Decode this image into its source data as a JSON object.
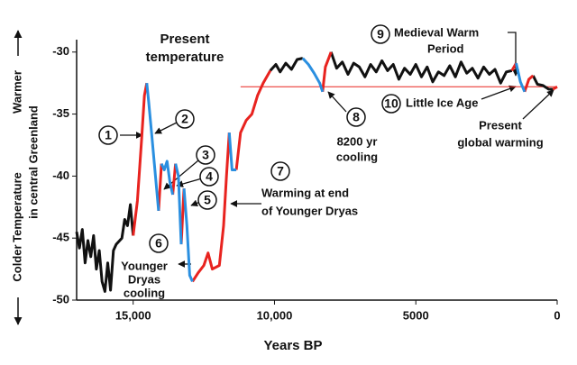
{
  "chart_data": {
    "type": "line",
    "xlabel": "Years BP",
    "ylabel": [
      "Temperature",
      "in central Greenland"
    ],
    "warmer": "Warmer",
    "colder": "Colder",
    "xlim": [
      17000,
      0
    ],
    "ylim": [
      -50,
      -29
    ],
    "xticks": [
      {
        "value": 15000,
        "label": "15,000"
      },
      {
        "value": 10000,
        "label": "10,000"
      },
      5000,
      0
    ],
    "yticks": [
      -30,
      -35,
      -40,
      -45,
      -50
    ],
    "series": [
      {
        "color": "#111111",
        "x": [
          17000,
          16900,
          16800,
          16700,
          16600,
          16500,
          16400,
          16300,
          16200,
          16100,
          16000,
          15900,
          15800,
          15700,
          15600,
          15400,
          15300,
          15200,
          15100,
          15000,
          null,
          10150,
          9950,
          9800,
          9600,
          9400,
          9200,
          9000,
          null,
          8000,
          7800,
          7600,
          7400,
          7200,
          7000,
          6800,
          6600,
          6400,
          6200,
          6000,
          5800,
          5600,
          5400,
          5200,
          5000,
          4800,
          4600,
          4400,
          4200,
          4000,
          3800,
          3600,
          3400,
          3200,
          3000,
          2800,
          2600,
          2400,
          2200,
          2000,
          1800,
          1600,
          null,
          850,
          700,
          500,
          300,
          150
        ],
        "values": [
          -44.5,
          -45.8,
          -44.3,
          -47,
          -45.2,
          -46.5,
          -44.8,
          -47.5,
          -46,
          -48.5,
          -49.3,
          -47,
          -49.2,
          -46,
          -45.5,
          -45,
          -43.5,
          -44,
          -42.3,
          -44.8,
          null,
          -31.5,
          -31,
          -31.6,
          -30.9,
          -31.4,
          -30.6,
          -30.5,
          null,
          -30,
          -31.3,
          -30.8,
          -31.8,
          -30.9,
          -31.2,
          -32,
          -31,
          -31.6,
          -30.7,
          -31.5,
          -31,
          -32.2,
          -31.3,
          -31.8,
          -31,
          -32,
          -31.2,
          -32.4,
          -31.6,
          -31.9,
          -31.1,
          -32,
          -30.8,
          -31.7,
          -31.3,
          -32.1,
          -31.2,
          -31.8,
          -31.4,
          -32.5,
          -31.6,
          -31.5,
          null,
          -31.9,
          -32.6,
          -32.7,
          -33,
          -33
        ]
      },
      {
        "color": "#e8231f",
        "x": [
          15000,
          14850,
          14700,
          14600,
          14520,
          null,
          14100,
          14000,
          null,
          13600,
          13500,
          null,
          13300,
          13200,
          null,
          12900,
          12700,
          12500,
          12350,
          12200,
          11950,
          11800,
          11700,
          11600,
          null,
          11350,
          11200,
          11000,
          10800,
          10600,
          10400,
          10150,
          null,
          8300,
          8200,
          8000,
          null,
          1600,
          1450,
          null,
          1150,
          1000,
          850,
          null,
          150,
          0
        ],
        "values": [
          -44.8,
          -42,
          -37,
          -33.5,
          -32.5,
          null,
          -42.8,
          -39,
          null,
          -41.5,
          -39,
          null,
          -45.5,
          -41,
          null,
          -48.5,
          -47.8,
          -47.2,
          -46.2,
          -47.5,
          -47.2,
          -44,
          -40,
          -36.5,
          null,
          -39.5,
          -36.5,
          -35.5,
          -35,
          -33.5,
          -32.5,
          -31.5,
          null,
          -33.2,
          -31.2,
          -30,
          null,
          -31.5,
          -30.9,
          null,
          -33.2,
          -32.2,
          -31.9,
          null,
          -33,
          -32.8
        ]
      },
      {
        "color": "#2a8fe0",
        "x": [
          14520,
          14450,
          14350,
          14250,
          14100,
          null,
          14000,
          13900,
          13800,
          13700,
          13600,
          null,
          13500,
          13400,
          13300,
          null,
          13200,
          13100,
          13000,
          12900,
          null,
          11600,
          11500,
          11350,
          null,
          9000,
          8800,
          8600,
          8400,
          8300,
          null,
          1450,
          1300,
          1150
        ],
        "values": [
          -32.5,
          -34,
          -36.5,
          -39,
          -42.8,
          null,
          -39,
          -39.5,
          -38.8,
          -40.5,
          -41.5,
          null,
          -39,
          -40,
          -45.5,
          null,
          -41,
          -44,
          -48,
          -48.5,
          null,
          -36.5,
          -39.5,
          -39.5,
          null,
          -30.5,
          -31,
          -31.7,
          -32.5,
          -33.2,
          null,
          -30.9,
          -32.4,
          -33.2
        ]
      }
    ],
    "reference_line": {
      "value": -32.8,
      "x": [
        11200,
        0
      ],
      "color": "#e8231f"
    },
    "markers": [
      1,
      2,
      3,
      4,
      5,
      6,
      7,
      8,
      9,
      10
    ],
    "annotations": [
      {
        "lines": [
          "Present",
          "temperature"
        ]
      },
      {
        "lines": [
          "Medieval Warm",
          "Period"
        ]
      },
      {
        "lines": [
          "Little Ice Age"
        ]
      },
      {
        "lines": [
          "8200 yr",
          "cooling"
        ]
      },
      {
        "lines": [
          "Present",
          "global warming"
        ]
      },
      {
        "lines": [
          "Warming at end",
          "of Younger Dryas"
        ]
      },
      {
        "lines": [
          "Younger",
          "Dryas",
          "cooling"
        ]
      }
    ]
  }
}
